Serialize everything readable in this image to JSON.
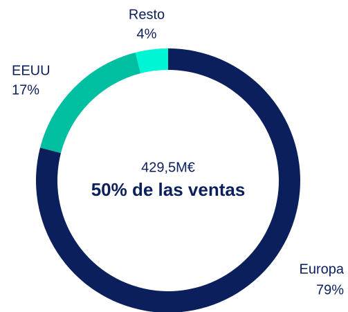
{
  "chart_data": {
    "type": "donut",
    "categories": [
      "Europa",
      "EEUU",
      "Resto"
    ],
    "values": [
      79,
      17,
      4
    ],
    "value_labels": [
      "79%",
      "17%",
      "4%"
    ],
    "colors": [
      "#0a1f5c",
      "#00bfa0",
      "#00f5d4"
    ],
    "annotations": [
      "429,5M€",
      "50% de las ventas"
    ]
  }
}
